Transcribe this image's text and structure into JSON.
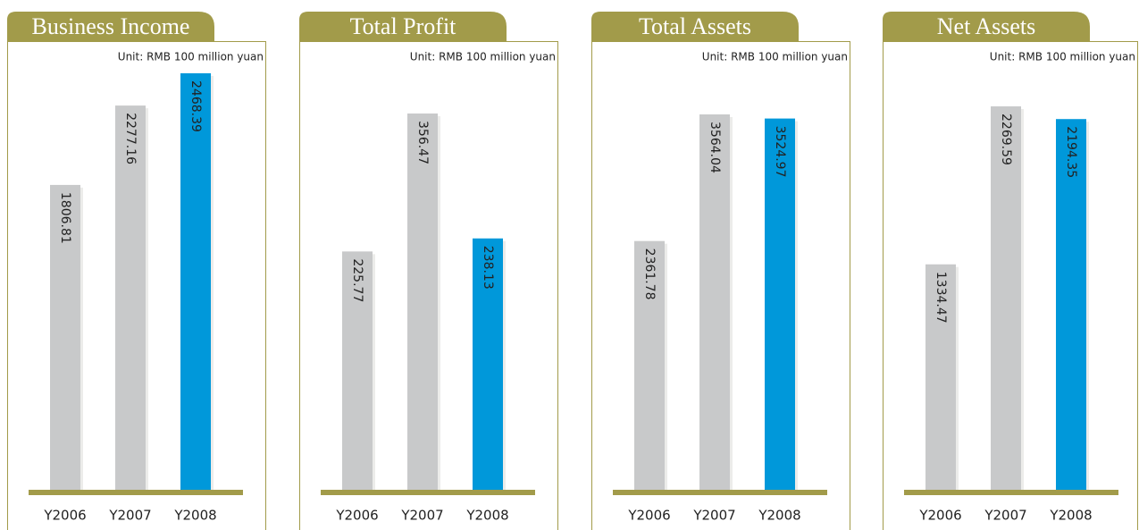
{
  "chart_data": [
    {
      "type": "bar",
      "title": "Business Income",
      "subtitle": "Unit: RMB 100 million yuan",
      "categories": [
        "Y2006",
        "Y2007",
        "Y2008"
      ],
      "values": [
        1806.81,
        2277.16,
        2468.39
      ],
      "colors": [
        "#c8c9ca",
        "#c8c9ca",
        "#0098da"
      ]
    },
    {
      "type": "bar",
      "title": "Total Profit",
      "subtitle": "Unit: RMB 100 million yuan",
      "categories": [
        "Y2006",
        "Y2007",
        "Y2008"
      ],
      "values": [
        225.77,
        356.47,
        238.13
      ],
      "colors": [
        "#c8c9ca",
        "#c8c9ca",
        "#0098da"
      ]
    },
    {
      "type": "bar",
      "title": "Total Assets",
      "subtitle": "Unit: RMB 100 million yuan",
      "categories": [
        "Y2006",
        "Y2007",
        "Y2008"
      ],
      "values": [
        2361.78,
        3564.04,
        3524.97
      ],
      "colors": [
        "#c8c9ca",
        "#c8c9ca",
        "#0098da"
      ]
    },
    {
      "type": "bar",
      "title": "Net Assets",
      "subtitle": "Unit: RMB 100 million yuan",
      "categories": [
        "Y2006",
        "Y2007",
        "Y2008"
      ],
      "values": [
        1334.47,
        2269.59,
        2194.35
      ],
      "colors": [
        "#c8c9ca",
        "#c8c9ca",
        "#0098da"
      ]
    }
  ]
}
